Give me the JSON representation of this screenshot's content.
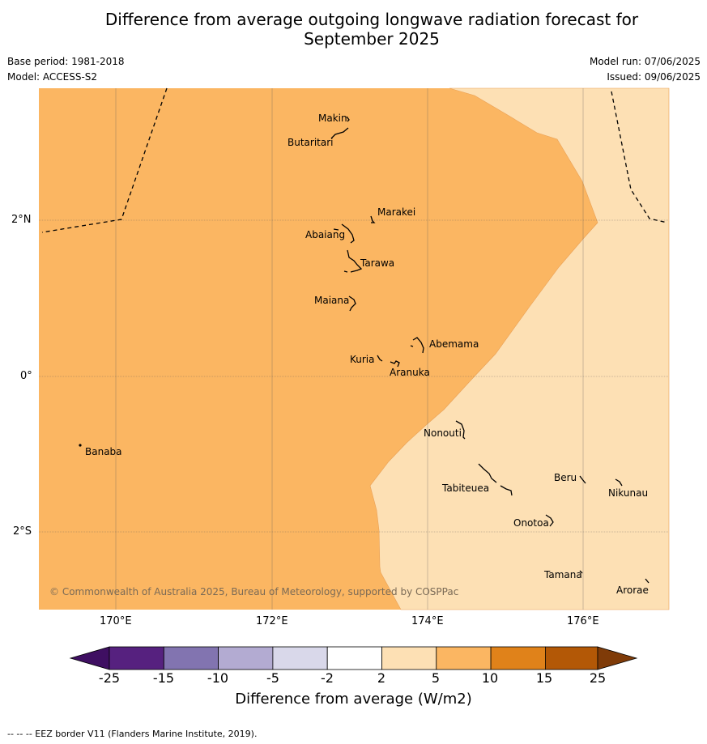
{
  "header": {
    "title_line1": "Difference from average outgoing longwave radiation forecast for",
    "title_line2": "September 2025",
    "base_period": "Base period: 1981-2018",
    "model": "Model: ACCESS-S2",
    "model_run": "Model run: 07/06/2025",
    "issued": "Issued: 09/06/2025"
  },
  "map": {
    "lat_ticks": [
      "2°N",
      "0°",
      "2°S"
    ],
    "lon_ticks": [
      "170°E",
      "172°E",
      "174°E",
      "176°E"
    ],
    "copyright": "© Commonwealth of Australia 2025, Bureau of Meteorology, supported by COSPPac",
    "places": [
      "Makin",
      "Butaritari",
      "Marakei",
      "Abaiang",
      "Tarawa",
      "Maiana",
      "Abemama",
      "Kuria",
      "Aranuka",
      "Nonouti",
      "Banaba",
      "Beru",
      "Tabiteuea",
      "Nikunau",
      "Onotoa",
      "Tamana",
      "Arorae"
    ],
    "shading_colors": {
      "band_5_10": "#fbb662",
      "band_2_5": "#fde0b4"
    }
  },
  "colorbar": {
    "ticks": [
      "-25",
      "-15",
      "-10",
      "-5",
      "-2",
      "2",
      "5",
      "10",
      "15",
      "25"
    ],
    "colors": [
      "#3f0f62",
      "#56217f",
      "#8274b0",
      "#b3abd2",
      "#d9d8ea",
      "#ffffff",
      "#fde0b4",
      "#fbb662",
      "#e0821a",
      "#b35806",
      "#7f3b08"
    ],
    "label": "Difference from average (W/m2)"
  },
  "footer": {
    "eez_note": "--  --  -- EEZ border V11 (Flanders Marine Institute, 2019)."
  }
}
